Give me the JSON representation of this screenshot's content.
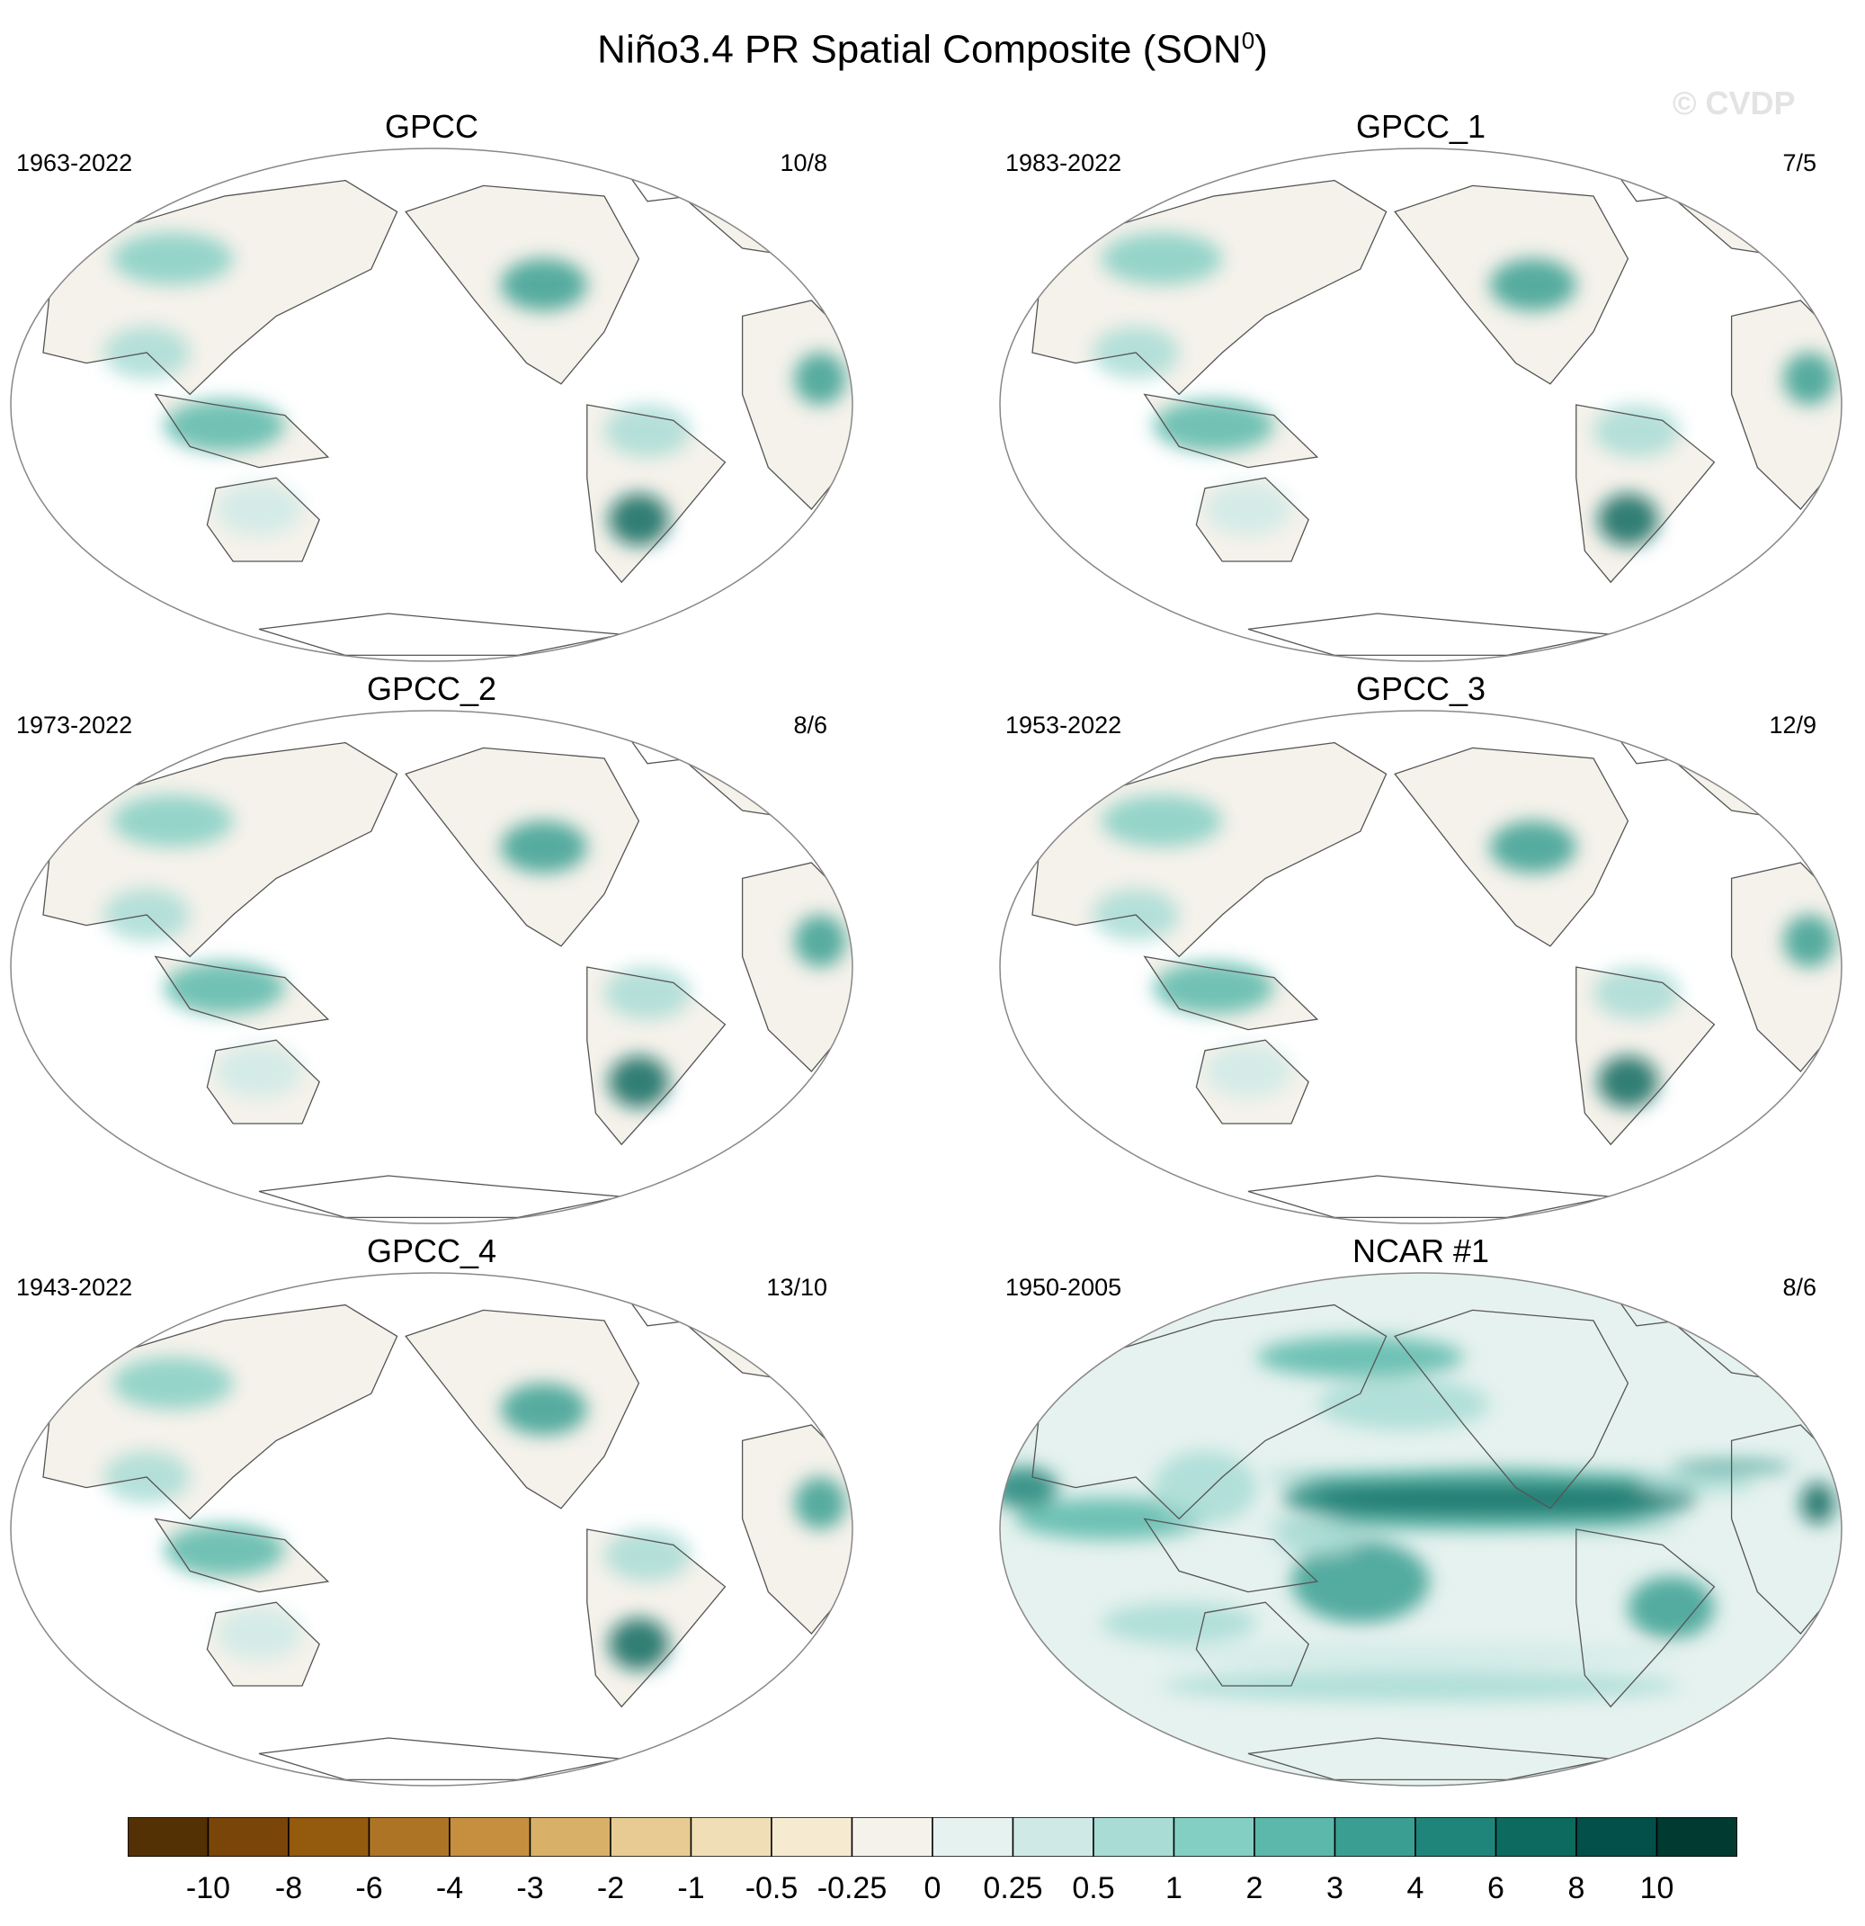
{
  "figure": {
    "title_main": "Niño3.4 PR Spatial Composite (SON",
    "title_sup": "0",
    "title_close": ")",
    "watermark": "© CVDP"
  },
  "panels": [
    {
      "name": "GPCC",
      "years": "1963-2022",
      "count": "10/8",
      "type": "land"
    },
    {
      "name": "GPCC_1",
      "years": "1983-2022",
      "count": "7/5",
      "type": "land"
    },
    {
      "name": "GPCC_2",
      "years": "1973-2022",
      "count": "8/6",
      "type": "land"
    },
    {
      "name": "GPCC_3",
      "years": "1953-2022",
      "count": "12/9",
      "type": "land"
    },
    {
      "name": "GPCC_4",
      "years": "1943-2022",
      "count": "13/10",
      "type": "land"
    },
    {
      "name": "NCAR #1",
      "years": "1950-2005",
      "count": "8/6",
      "type": "global"
    }
  ],
  "colorbar": {
    "labels": [
      "-10",
      "-8",
      "-6",
      "-4",
      "-3",
      "-2",
      "-1",
      "-0.5",
      "-0.25",
      "0",
      "0.25",
      "0.5",
      "1",
      "2",
      "3",
      "4",
      "6",
      "8",
      "10"
    ],
    "colors": [
      "#543005",
      "#7a4508",
      "#945a0e",
      "#ae7426",
      "#c58f3f",
      "#d8b067",
      "#e8cb92",
      "#f0dfb6",
      "#f6ebd0",
      "#f5f2eb",
      "#e6f2ef",
      "#cfeae6",
      "#a8dcd5",
      "#84cfc3",
      "#5bb8aa",
      "#3a9f92",
      "#1f857a",
      "#0c6a5f",
      "#03504a",
      "#013a30"
    ]
  }
}
